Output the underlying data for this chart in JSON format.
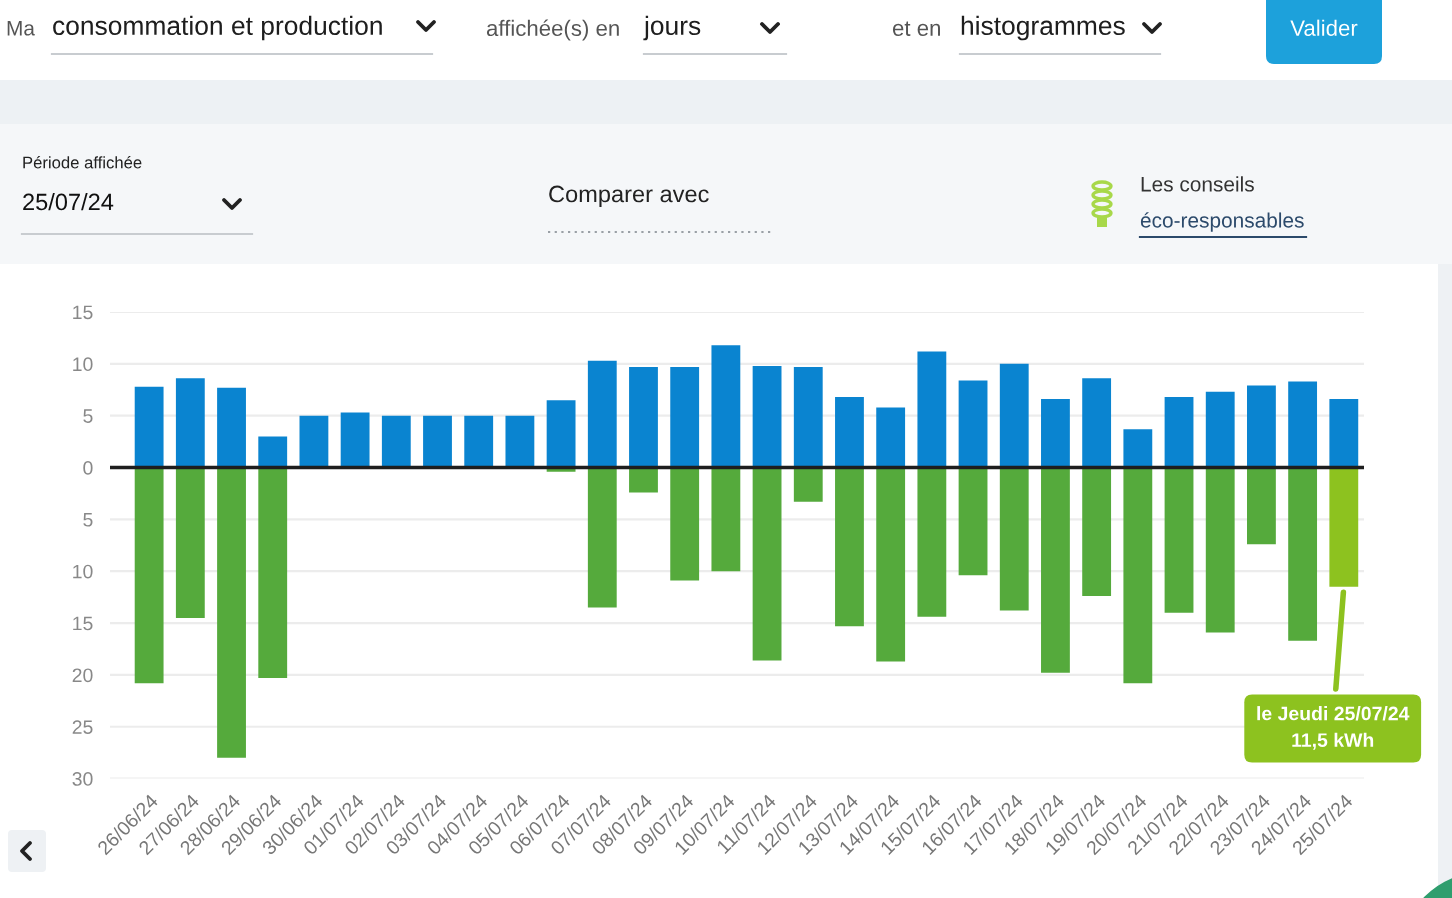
{
  "chart_data": {
    "type": "bar",
    "stacked": true,
    "categories": [
      "26/06/24",
      "27/06/24",
      "28/06/24",
      "29/06/24",
      "30/06/24",
      "01/07/24",
      "02/07/24",
      "03/07/24",
      "04/07/24",
      "05/07/24",
      "06/07/24",
      "07/07/24",
      "08/07/24",
      "09/07/24",
      "10/07/24",
      "11/07/24",
      "12/07/24",
      "13/07/24",
      "14/07/24",
      "15/07/24",
      "16/07/24",
      "17/07/24",
      "18/07/24",
      "19/07/24",
      "20/07/24",
      "21/07/24",
      "22/07/24",
      "23/07/24",
      "24/07/24",
      "25/07/24"
    ],
    "series": [
      {
        "color": "#0a84d0",
        "values": [
          7.8,
          8.6,
          7.7,
          3.0,
          5.0,
          5.3,
          5.0,
          5.0,
          5.0,
          5.0,
          6.5,
          10.3,
          9.7,
          9.7,
          11.8,
          9.8,
          9.7,
          6.8,
          5.8,
          11.2,
          8.4,
          10.0,
          6.6,
          8.6,
          3.7,
          6.8,
          7.3,
          7.9,
          8.3,
          6.6
        ]
      },
      {
        "colors": [
          "#55aa3c",
          "#55aa3c",
          "#55aa3c",
          "#55aa3c",
          "#55aa3c",
          "#55aa3c",
          "#55aa3c",
          "#55aa3c",
          "#55aa3c",
          "#55aa3c",
          "#55aa3c",
          "#55aa3c",
          "#55aa3c",
          "#55aa3c",
          "#55aa3c",
          "#55aa3c",
          "#55aa3c",
          "#55aa3c",
          "#55aa3c",
          "#55aa3c",
          "#55aa3c",
          "#55aa3c",
          "#55aa3c",
          "#55aa3c",
          "#55aa3c",
          "#55aa3c",
          "#55aa3c",
          "#55aa3c",
          "#55aa3c",
          "#8dc21f"
        ],
        "values": [
          -20.8,
          -14.5,
          -28.0,
          -20.3,
          null,
          null,
          null,
          null,
          null,
          null,
          -0.4,
          -13.5,
          -2.4,
          -10.9,
          -10.0,
          -18.6,
          -3.3,
          -15.3,
          -18.7,
          -14.4,
          -10.4,
          -13.8,
          -19.8,
          -12.4,
          -20.8,
          -14.0,
          -15.9,
          -7.4,
          -16.7,
          -11.5
        ]
      }
    ],
    "ylim": [
      -30,
      15
    ],
    "yticks": [
      {
        "value": -30,
        "label": "30"
      },
      {
        "value": -25,
        "label": "25"
      },
      {
        "value": -20,
        "label": "20"
      },
      {
        "value": -15,
        "label": "15"
      },
      {
        "value": -10,
        "label": "10"
      },
      {
        "value": -5,
        "label": "5"
      },
      0,
      5,
      10,
      15
    ],
    "grid": "y",
    "ref_lines": [
      {
        "axis": "y",
        "value": 0,
        "color": "#1e1e1e"
      }
    ],
    "annotations": [
      {
        "text": "le Jeudi 25/07/24\n11,5 kWh",
        "x": "25/07/24",
        "y": -11.5
      },
      "Ma",
      "consommation et production",
      "affichée(s) en",
      "jours",
      "et en",
      "histogrammes",
      "Valider",
      "Période affichée",
      "25/07/24",
      "Comparer avec",
      "Les conseils",
      "éco-responsables"
    ]
  }
}
